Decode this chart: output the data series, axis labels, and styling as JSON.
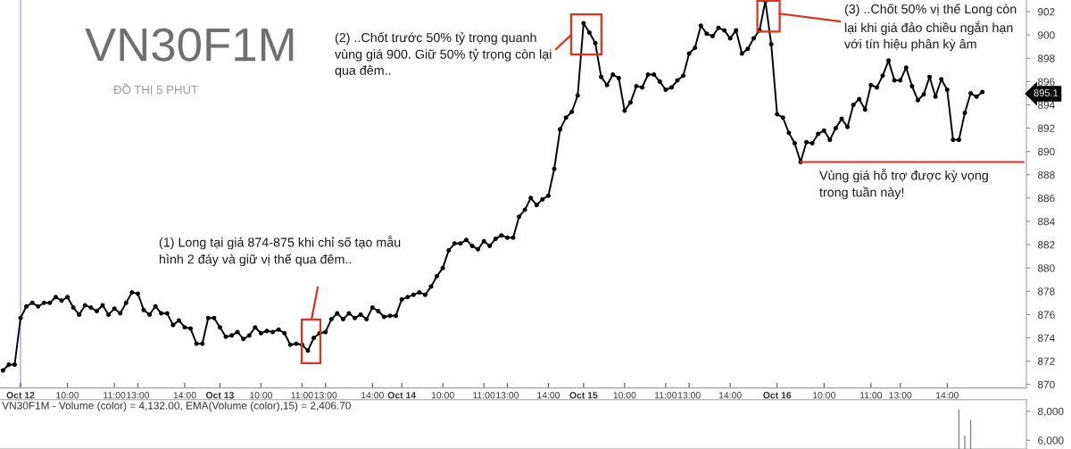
{
  "chart_data": [
    {
      "type": "line",
      "title": "VN30F1M",
      "subtitle": "ĐỒ THỊ 5 PHÚT",
      "marker": "circle",
      "categories": [
        null,
        null,
        null,
        "Oct 12",
        null,
        null,
        null,
        null,
        null,
        null,
        null,
        "10:00",
        null,
        null,
        null,
        null,
        null,
        null,
        null,
        "11:00",
        null,
        null,
        null,
        "13:00",
        null,
        null,
        null,
        null,
        null,
        null,
        null,
        "14:00",
        null,
        null,
        null,
        null,
        null,
        "Oct 13",
        null,
        null,
        null,
        null,
        null,
        null,
        "10:00",
        null,
        null,
        null,
        null,
        null,
        null,
        "11:00",
        null,
        null,
        null,
        "13:00",
        null,
        null,
        null,
        null,
        null,
        null,
        null,
        "14:00",
        null,
        null,
        null,
        null,
        "Oct 14",
        null,
        null,
        null,
        null,
        null,
        null,
        "10:00",
        null,
        null,
        null,
        null,
        null,
        null,
        "11:00",
        null,
        null,
        null,
        "13:00",
        null,
        null,
        null,
        null,
        null,
        null,
        "14:00",
        null,
        null,
        null,
        null,
        null,
        "Oct 15",
        null,
        null,
        null,
        null,
        null,
        null,
        "10:00",
        null,
        null,
        null,
        null,
        null,
        null,
        "11:00",
        null,
        null,
        null,
        "13:00",
        null,
        null,
        null,
        null,
        null,
        null,
        "14:00",
        null,
        null,
        null,
        null,
        null,
        null,
        null,
        "Oct 16",
        null,
        null,
        null,
        null,
        null,
        null,
        null,
        "10:00",
        null,
        null,
        null,
        null,
        null,
        null,
        null,
        "11:00",
        null,
        null,
        null,
        null,
        "13:00",
        null,
        null,
        null,
        null,
        null,
        null,
        null,
        "14:00",
        null,
        null,
        null,
        null,
        null,
        null,
        null,
        null,
        null,
        null,
        null,
        null,
        null
      ],
      "series": [
        {
          "color": "#000000",
          "values": [
            871.2,
            871.7,
            871.7,
            875.7,
            876.7,
            877.0,
            876.7,
            877.0,
            877.0,
            877.5,
            877.2,
            877.5,
            876.6,
            876.0,
            876.8,
            876.6,
            876.3,
            876.8,
            876.0,
            876.5,
            876.1,
            877.0,
            877.9,
            877.8,
            876.4,
            876.0,
            876.7,
            876.1,
            876.1,
            875.1,
            875.5,
            874.9,
            874.8,
            873.5,
            873.5,
            875.7,
            875.7,
            874.9,
            874.1,
            874.2,
            874.5,
            873.9,
            874.2,
            874.9,
            874.4,
            874.6,
            874.5,
            874.7,
            874.4,
            873.4,
            873.5,
            873.4,
            872.9,
            874.0,
            874.4,
            874.5,
            875.6,
            876.1,
            875.6,
            876.1,
            875.7,
            876.0,
            875.6,
            876.6,
            876.3,
            875.8,
            875.9,
            875.9,
            877.3,
            877.5,
            877.7,
            877.9,
            877.7,
            878.4,
            879.3,
            880.0,
            881.5,
            882.1,
            882.1,
            882.4,
            881.9,
            881.6,
            882.3,
            881.9,
            882.5,
            882.8,
            882.6,
            882.6,
            884.4,
            885.0,
            886.0,
            885.4,
            885.9,
            886.2,
            888.5,
            891.9,
            892.9,
            893.4,
            894.8,
            901.0,
            900.2,
            899.3,
            896.4,
            895.7,
            896.6,
            896.3,
            893.5,
            894.2,
            895.6,
            895.5,
            896.6,
            896.6,
            896.0,
            895.3,
            895.5,
            896.1,
            896.5,
            898.4,
            898.9,
            900.8,
            900.1,
            899.9,
            900.6,
            900.4,
            899.7,
            900.4,
            898.4,
            898.8,
            899.7,
            900.4,
            902.9,
            899.2,
            893.2,
            892.9,
            891.6,
            890.7,
            889.1,
            890.8,
            890.7,
            891.5,
            891.8,
            891.0,
            892.0,
            892.8,
            892.1,
            894.0,
            894.5,
            893.6,
            895.7,
            895.5,
            896.5,
            897.8,
            896.1,
            896.1,
            897.2,
            895.6,
            894.4,
            894.9,
            896.4,
            894.7,
            896.2,
            895.3,
            891.0,
            891.0,
            893.3,
            895.0,
            894.7,
            895.1,
            null,
            null,
            null,
            null,
            null,
            null,
            null
          ]
        },
        {
          "color": "#e0301e",
          "marker": "none",
          "values": [
            null,
            null,
            null,
            null,
            null,
            null,
            null,
            null,
            null,
            null,
            null,
            null,
            null,
            null,
            null,
            null,
            null,
            null,
            null,
            null,
            null,
            null,
            null,
            null,
            null,
            null,
            null,
            null,
            null,
            null,
            null,
            null,
            null,
            null,
            null,
            null,
            null,
            null,
            null,
            null,
            null,
            null,
            null,
            null,
            null,
            null,
            null,
            null,
            null,
            null,
            null,
            null,
            null,
            null,
            null,
            null,
            null,
            null,
            null,
            null,
            null,
            null,
            null,
            null,
            null,
            null,
            null,
            null,
            null,
            null,
            null,
            null,
            null,
            null,
            null,
            null,
            null,
            null,
            null,
            null,
            null,
            null,
            null,
            null,
            null,
            null,
            null,
            null,
            null,
            null,
            null,
            null,
            null,
            null,
            null,
            null,
            null,
            null,
            null,
            null,
            null,
            null,
            null,
            null,
            null,
            null,
            null,
            null,
            null,
            null,
            null,
            null,
            null,
            null,
            null,
            null,
            null,
            null,
            null,
            null,
            null,
            null,
            null,
            null,
            null,
            null,
            null,
            null,
            null,
            null,
            null,
            null,
            null,
            null,
            null,
            null,
            889.1,
            889.1,
            889.1,
            889.1,
            889.1,
            889.1,
            889.1,
            889.1,
            889.1,
            889.1,
            889.1,
            889.1,
            889.1,
            889.1,
            889.1,
            889.1,
            889.1,
            889.1,
            889.1,
            889.1,
            889.1,
            889.1,
            889.1,
            889.1,
            889.1,
            889.1,
            889.1,
            889.1,
            889.1,
            889.1,
            889.1,
            889.1,
            889.1,
            889.1,
            889.1,
            889.1,
            889.1,
            889.1,
            889.1
          ]
        }
      ],
      "ylim": [
        869.7,
        903.0
      ],
      "yticks": [
        870,
        872,
        874,
        876,
        878,
        880,
        882,
        884,
        886,
        888,
        890,
        892,
        894,
        896,
        898,
        900,
        902
      ],
      "ref_lines": [
        {
          "axis": "x",
          "value": "Oct 12",
          "color": "#b4b4e6"
        }
      ],
      "annotations": [
        "(1) Long tại giá 874-875 khi chỉ số tạo mẫu\nhình 2 đáy và giữ vị thế qua đêm..",
        "(2) ..Chốt trước 50% tỷ trọng quanh\nvùng giá 900. Giữ 50% tỷ trọng còn lại\nqua đêm..",
        "(3) ..Chốt 50% vị thế Long còn\nlại khi giá đảo chiều ngắn hạn\nvới tín hiệu phân kỳ âm",
        "Vùng giá hỗ trợ được kỳ vọng\ntrong tuần này!",
        "895.1"
      ]
    },
    {
      "type": "bar",
      "title": "VN30F1M - Volume (color) = 4,132.00, EMA(Volume (color),15) = 2,406.70",
      "tick_labels": "y",
      "categories": [
        null,
        null,
        null,
        null,
        null,
        null,
        null,
        null,
        null,
        null,
        null,
        null,
        null,
        null,
        null,
        null,
        null,
        null,
        null,
        null,
        null,
        null,
        null,
        null,
        null,
        null,
        null,
        null,
        null,
        null,
        null,
        null,
        null,
        null,
        null,
        null,
        null,
        null,
        null,
        null,
        null,
        null,
        null,
        null,
        null,
        null,
        null,
        null,
        null,
        null,
        null,
        null,
        null,
        null,
        null,
        null,
        null,
        null,
        null,
        null,
        null,
        null,
        null,
        null,
        null,
        null,
        null,
        null,
        null,
        null,
        null,
        null,
        null,
        null,
        null,
        null,
        null,
        null,
        null,
        null,
        null,
        null,
        null,
        null,
        null,
        null,
        null,
        null,
        null,
        null,
        null,
        null,
        null,
        null,
        null,
        null,
        null,
        null,
        null,
        null,
        null,
        null,
        null,
        null,
        null,
        null,
        null,
        null,
        null,
        null,
        null,
        null,
        null,
        null,
        null,
        null,
        null,
        null,
        null,
        null,
        null,
        null,
        null,
        null,
        null,
        null,
        null,
        null,
        null,
        null,
        null,
        null,
        null,
        null,
        null,
        null,
        null,
        null,
        null,
        null,
        null,
        null,
        null,
        null,
        null,
        null,
        null,
        null,
        null,
        null,
        null,
        null,
        null,
        null,
        null,
        null,
        null,
        null,
        null,
        null,
        null,
        null,
        null,
        null,
        null,
        null,
        null,
        null,
        null,
        null,
        null,
        null,
        null,
        null,
        null
      ],
      "values": [
        null,
        null,
        null,
        null,
        null,
        null,
        null,
        null,
        null,
        null,
        null,
        null,
        null,
        null,
        null,
        null,
        null,
        null,
        null,
        null,
        null,
        null,
        null,
        null,
        null,
        null,
        null,
        null,
        null,
        null,
        null,
        null,
        null,
        null,
        null,
        null,
        null,
        null,
        null,
        null,
        null,
        null,
        null,
        null,
        null,
        null,
        null,
        null,
        null,
        null,
        null,
        null,
        null,
        null,
        null,
        null,
        null,
        null,
        null,
        null,
        null,
        null,
        null,
        null,
        null,
        null,
        null,
        null,
        null,
        null,
        null,
        null,
        null,
        null,
        null,
        null,
        null,
        null,
        null,
        null,
        null,
        null,
        null,
        null,
        null,
        null,
        null,
        null,
        null,
        null,
        null,
        null,
        null,
        null,
        null,
        null,
        null,
        null,
        null,
        null,
        null,
        null,
        null,
        null,
        null,
        null,
        null,
        null,
        null,
        null,
        null,
        null,
        null,
        null,
        null,
        null,
        null,
        null,
        null,
        null,
        null,
        null,
        null,
        null,
        null,
        null,
        null,
        null,
        null,
        null,
        null,
        null,
        null,
        null,
        null,
        null,
        null,
        null,
        null,
        null,
        null,
        null,
        null,
        null,
        null,
        null,
        null,
        null,
        null,
        null,
        null,
        null,
        null,
        null,
        null,
        null,
        null,
        null,
        null,
        null,
        null,
        null,
        null,
        8100,
        6300,
        7400,
        null,
        null,
        null,
        null,
        null,
        null,
        null,
        null,
        null
      ],
      "color": "#808080",
      "ylim": [
        5400,
        8800
      ],
      "yticks": [
        {
          "value": 6000,
          "label": "6,000"
        },
        {
          "value": 8000,
          "label": "8,000"
        }
      ]
    }
  ]
}
